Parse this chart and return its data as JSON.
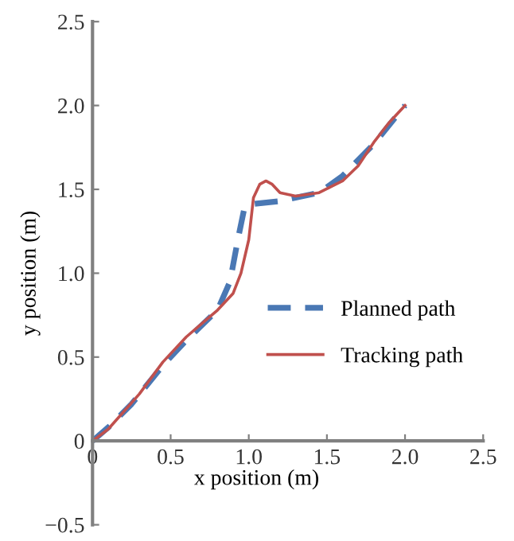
{
  "chart_data": {
    "type": "line",
    "xlabel": "x position (m)",
    "ylabel": "y position (m)",
    "xlim": [
      0,
      2.5
    ],
    "ylim": [
      -0.5,
      2.5
    ],
    "xticks": [
      0,
      0.5,
      {
        "value": 1.0,
        "label": "1.0"
      },
      1.5,
      {
        "value": 2.0,
        "label": "2.0"
      },
      2.5
    ],
    "yticks": [
      {
        "value": -0.5,
        "label": "−0.5"
      },
      0,
      0.5,
      {
        "value": 1.0,
        "label": "1.0"
      },
      1.5,
      {
        "value": 2.0,
        "label": "2.0"
      },
      2.5
    ],
    "grid": false,
    "legend": "right",
    "marker": "none",
    "series": [
      {
        "name": "Planned path",
        "color": "#4a78b4",
        "line_style": "dashed",
        "x": [
          0,
          0.1,
          0.25,
          0.45,
          0.6,
          0.8,
          0.88,
          0.93,
          0.97,
          1.0,
          1.2,
          1.45,
          1.6,
          1.8,
          2.0
        ],
        "values": [
          0,
          0.08,
          0.22,
          0.45,
          0.6,
          0.78,
          0.95,
          1.2,
          1.38,
          1.41,
          1.43,
          1.48,
          1.58,
          1.77,
          2.0
        ]
      },
      {
        "name": "Tracking path",
        "color": "#c0504d",
        "line_style": "solid",
        "x": [
          0,
          0.1,
          0.3,
          0.45,
          0.6,
          0.8,
          0.9,
          0.95,
          1.0,
          1.03,
          1.07,
          1.11,
          1.15,
          1.2,
          1.3,
          1.45,
          1.6,
          1.7,
          1.8,
          1.9,
          2.0
        ],
        "values": [
          0,
          0.07,
          0.28,
          0.47,
          0.62,
          0.78,
          0.88,
          1.0,
          1.2,
          1.45,
          1.53,
          1.55,
          1.53,
          1.48,
          1.46,
          1.48,
          1.55,
          1.64,
          1.78,
          1.9,
          2.0
        ]
      }
    ]
  }
}
